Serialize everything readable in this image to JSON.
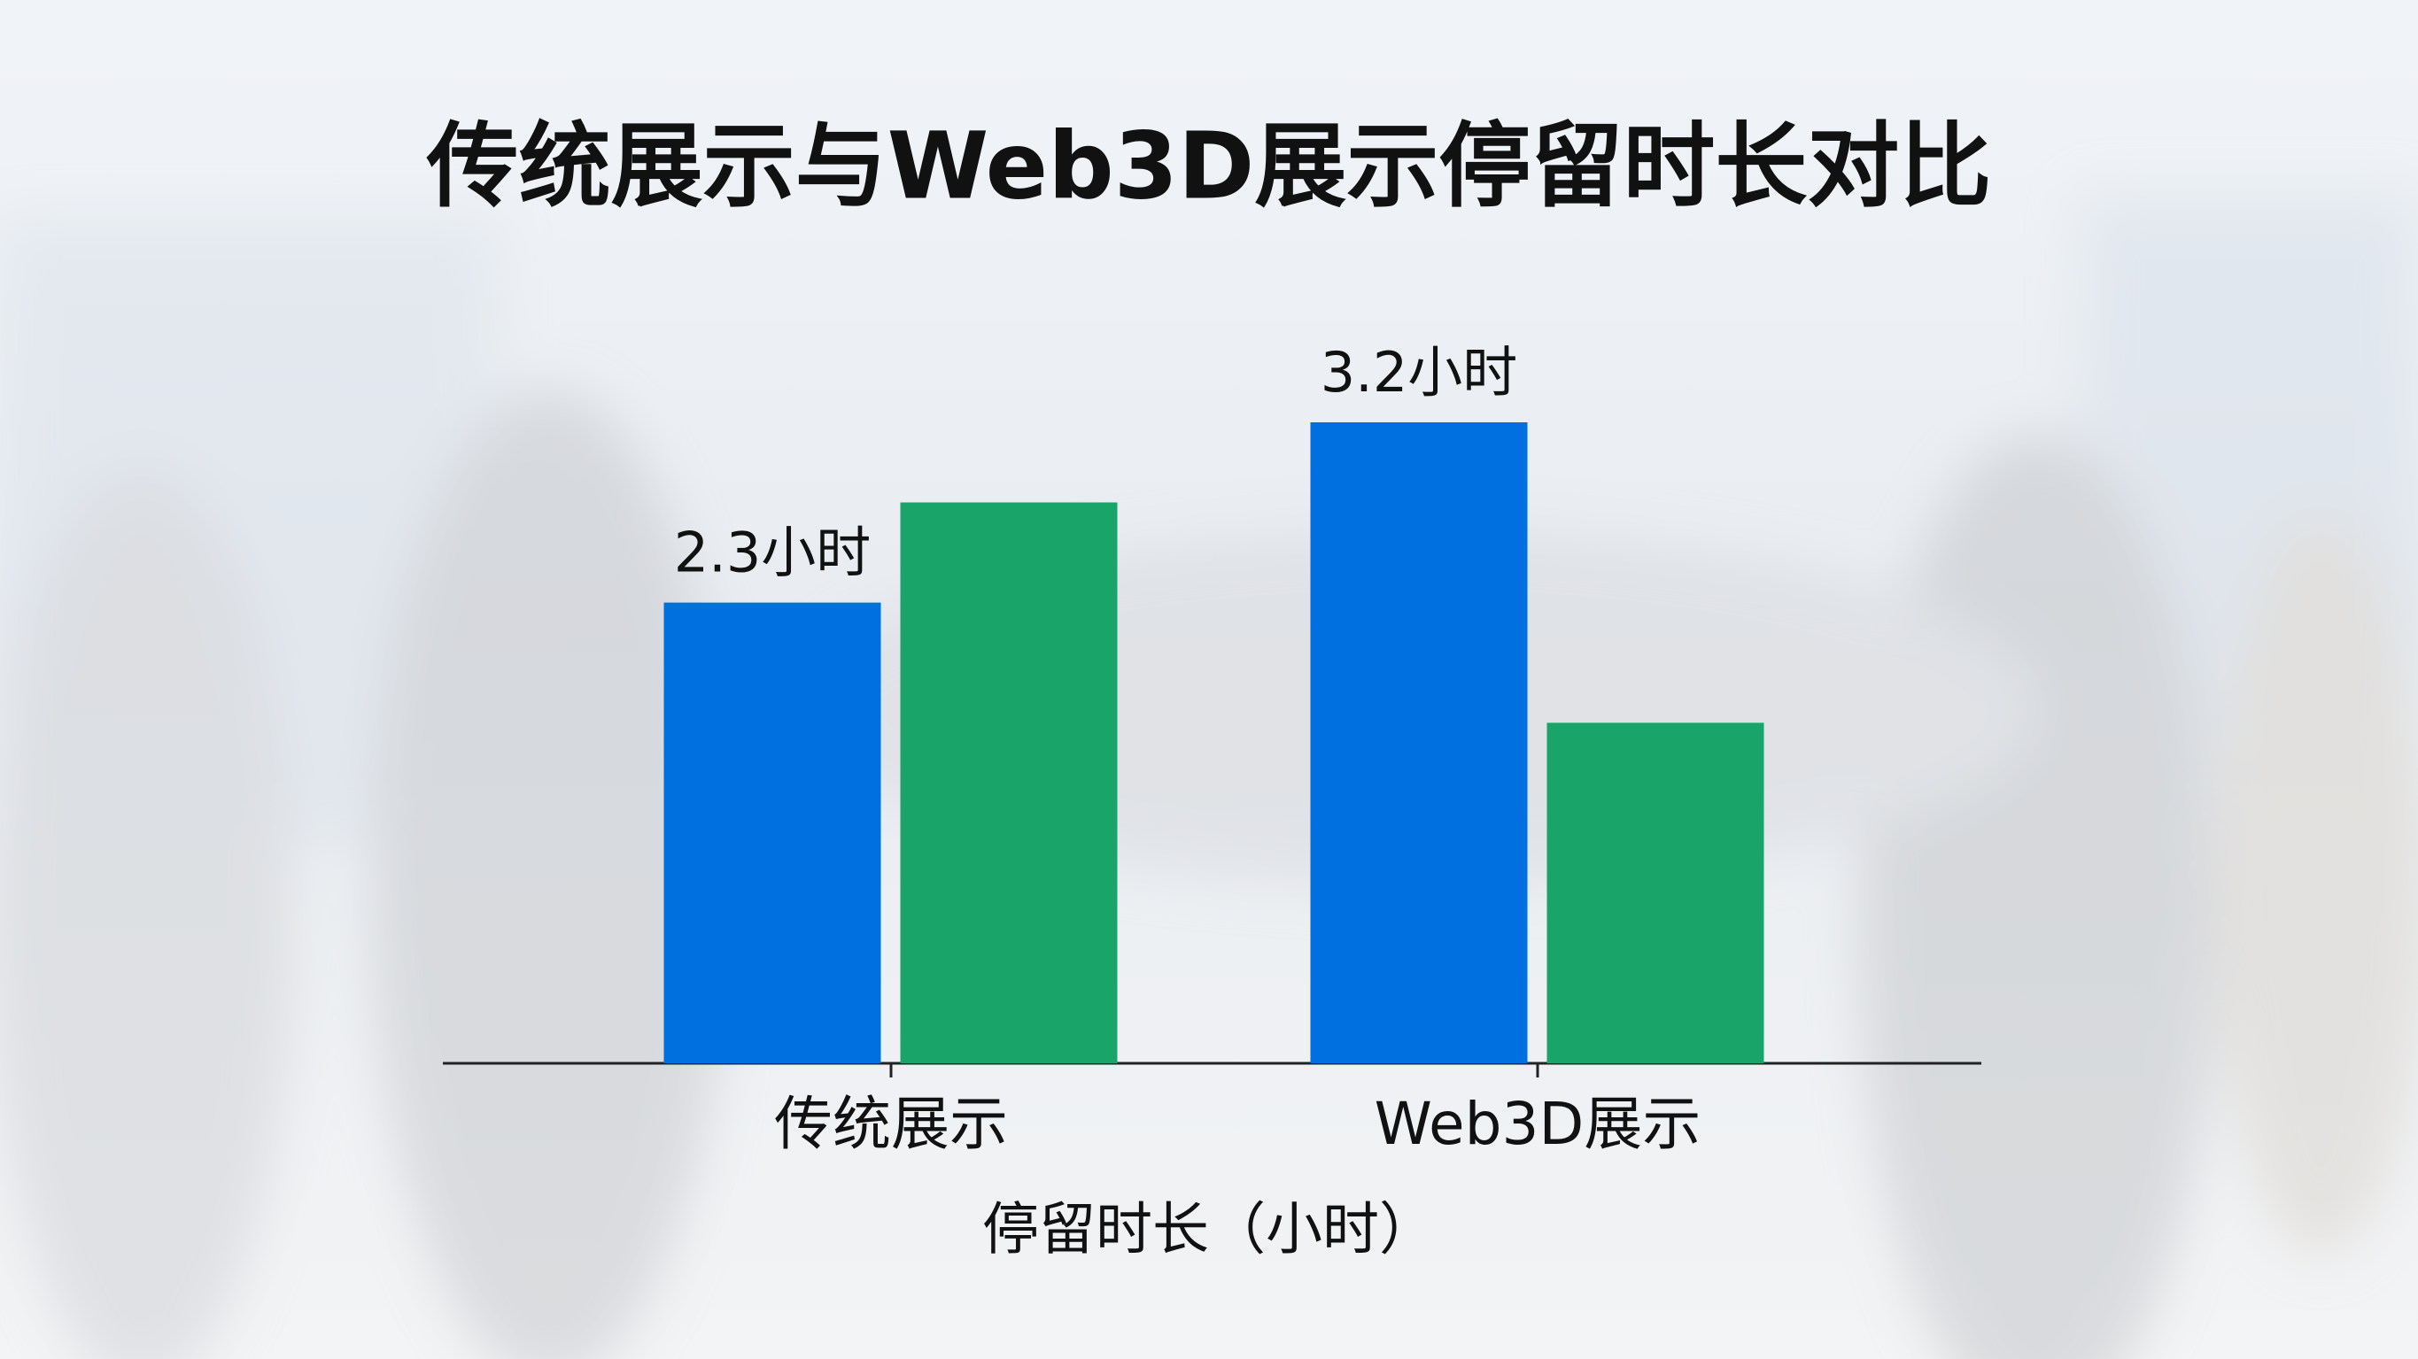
{
  "chart_data": {
    "type": "bar",
    "title": "传统展示与Web3D展示停留时长对比",
    "x_label": "停留时长（小时）",
    "categories": [
      "传统展示",
      "Web3D展示"
    ],
    "series": [
      {
        "color": "#0070e0",
        "values": [
          2.3,
          3.2
        ],
        "value_labels": [
          "2.3小时",
          "3.2小时"
        ]
      },
      {
        "color": "#19a56a",
        "values": [
          2.8,
          1.7
        ]
      }
    ]
  }
}
